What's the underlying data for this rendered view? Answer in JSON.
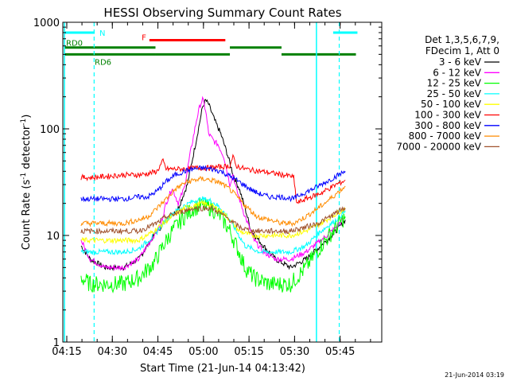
{
  "chart_data": {
    "type": "line",
    "title": "HESSI Observing Summary Count Rates",
    "xlabel": "Start Time (21-Jun-14 04:13:42)",
    "ylabel_main": "Count Rate (s",
    "ylabel_sup1": "-1",
    "ylabel_mid": " detector",
    "ylabel_sup2": "-1",
    "ylabel_end": ")",
    "x_unit": "minutes after 04:13:42",
    "xlim": [
      0,
      105
    ],
    "ylim": [
      1,
      1000
    ],
    "yscale": "log",
    "grid": false,
    "x_ticks": [
      {
        "label": "04:15",
        "x": 1.3
      },
      {
        "label": "04:30",
        "x": 16.3
      },
      {
        "label": "04:45",
        "x": 31.3
      },
      {
        "label": "05:00",
        "x": 46.3
      },
      {
        "label": "05:15",
        "x": 61.3
      },
      {
        "label": "05:30",
        "x": 76.3
      },
      {
        "label": "05:45",
        "x": 91.3
      }
    ],
    "y_ticks": [
      {
        "label": "1",
        "y": 1
      },
      {
        "label": "10",
        "y": 10
      },
      {
        "label": "100",
        "y": 100
      },
      {
        "label": "1000",
        "y": 1000
      }
    ],
    "legend_header": [
      "Det 1,3,5,6,7,9,",
      "FDecim 1, Att 0"
    ],
    "series": [
      {
        "name": "3 - 6 keV",
        "color": "#000000",
        "points": [
          [
            6,
            8
          ],
          [
            9,
            6
          ],
          [
            14,
            5
          ],
          [
            20,
            5
          ],
          [
            25,
            6
          ],
          [
            30,
            10
          ],
          [
            35,
            15
          ],
          [
            38,
            18
          ],
          [
            41,
            30
          ],
          [
            44,
            80
          ],
          [
            46,
            160
          ],
          [
            47,
            185
          ],
          [
            48,
            170
          ],
          [
            50,
            120
          ],
          [
            52,
            90
          ],
          [
            54,
            60
          ],
          [
            56,
            38
          ],
          [
            57,
            32
          ],
          [
            58,
            28
          ],
          [
            60,
            18
          ],
          [
            62,
            11
          ],
          [
            66,
            8
          ],
          [
            70,
            6
          ],
          [
            75,
            5
          ],
          [
            80,
            6
          ],
          [
            85,
            8
          ],
          [
            90,
            11
          ],
          [
            93,
            14
          ]
        ]
      },
      {
        "name": "6 - 12 keV",
        "color": "#ff00ff",
        "points": [
          [
            6,
            9
          ],
          [
            9,
            6
          ],
          [
            14,
            5
          ],
          [
            20,
            5
          ],
          [
            25,
            6
          ],
          [
            30,
            10
          ],
          [
            32,
            12
          ],
          [
            34,
            20
          ],
          [
            36,
            28
          ],
          [
            38,
            20
          ],
          [
            40,
            28
          ],
          [
            42,
            60
          ],
          [
            44,
            120
          ],
          [
            45,
            160
          ],
          [
            46,
            190
          ],
          [
            47,
            150
          ],
          [
            48,
            90
          ],
          [
            50,
            75
          ],
          [
            51,
            72
          ],
          [
            53,
            55
          ],
          [
            55,
            30
          ],
          [
            56,
            38
          ],
          [
            57,
            28
          ],
          [
            60,
            15
          ],
          [
            63,
            9
          ],
          [
            66,
            7
          ],
          [
            70,
            6
          ],
          [
            75,
            6
          ],
          [
            80,
            7
          ],
          [
            85,
            9
          ],
          [
            90,
            12
          ],
          [
            93,
            15
          ]
        ]
      },
      {
        "name": "12 - 25 keV",
        "color": "#00ff00",
        "points": [
          [
            6,
            4
          ],
          [
            9,
            3.5
          ],
          [
            14,
            3.5
          ],
          [
            20,
            3.5
          ],
          [
            25,
            4
          ],
          [
            30,
            5.5
          ],
          [
            33,
            8
          ],
          [
            36,
            11
          ],
          [
            40,
            15
          ],
          [
            43,
            18
          ],
          [
            46,
            19
          ],
          [
            49,
            18
          ],
          [
            52,
            15
          ],
          [
            55,
            11
          ],
          [
            58,
            7
          ],
          [
            60,
            5
          ],
          [
            63,
            4
          ],
          [
            68,
            3.5
          ],
          [
            75,
            3.5
          ],
          [
            80,
            5
          ],
          [
            85,
            8
          ],
          [
            90,
            12
          ],
          [
            93,
            15
          ]
        ]
      },
      {
        "name": "25 - 50 keV",
        "color": "#00ffff",
        "points": [
          [
            6,
            7
          ],
          [
            9,
            7
          ],
          [
            14,
            7
          ],
          [
            20,
            7
          ],
          [
            25,
            7.5
          ],
          [
            30,
            10
          ],
          [
            33,
            13
          ],
          [
            36,
            16
          ],
          [
            40,
            19
          ],
          [
            43,
            21
          ],
          [
            46,
            22
          ],
          [
            49,
            21
          ],
          [
            52,
            18
          ],
          [
            55,
            14
          ],
          [
            58,
            10
          ],
          [
            60,
            8
          ],
          [
            65,
            7
          ],
          [
            70,
            7
          ],
          [
            75,
            7
          ],
          [
            80,
            8
          ],
          [
            85,
            11
          ],
          [
            90,
            14
          ],
          [
            93,
            17
          ]
        ]
      },
      {
        "name": "50 - 100 keV",
        "color": "#ffff00",
        "points": [
          [
            6,
            9
          ],
          [
            9,
            9
          ],
          [
            14,
            9
          ],
          [
            20,
            9
          ],
          [
            25,
            9
          ],
          [
            30,
            11
          ],
          [
            33,
            13
          ],
          [
            36,
            15
          ],
          [
            40,
            18
          ],
          [
            43,
            19
          ],
          [
            46,
            20
          ],
          [
            49,
            19
          ],
          [
            52,
            17
          ],
          [
            55,
            14
          ],
          [
            58,
            11
          ],
          [
            62,
            10
          ],
          [
            66,
            10
          ],
          [
            70,
            10
          ],
          [
            75,
            10
          ],
          [
            80,
            11
          ],
          [
            85,
            13
          ],
          [
            90,
            16
          ],
          [
            93,
            18
          ]
        ]
      },
      {
        "name": "100 - 300 keV",
        "color": "#ff0000",
        "points": [
          [
            6,
            35
          ],
          [
            10,
            35
          ],
          [
            15,
            36
          ],
          [
            20,
            37
          ],
          [
            25,
            37
          ],
          [
            28,
            38
          ],
          [
            31,
            40
          ],
          [
            33,
            50
          ],
          [
            34,
            42
          ],
          [
            36,
            42
          ],
          [
            40,
            42
          ],
          [
            44,
            43
          ],
          [
            48,
            43
          ],
          [
            52,
            44
          ],
          [
            55,
            45
          ],
          [
            56,
            55
          ],
          [
            57,
            45
          ],
          [
            60,
            42
          ],
          [
            65,
            40
          ],
          [
            70,
            38
          ],
          [
            75,
            36
          ],
          [
            76,
            35
          ],
          [
            77,
            20
          ],
          [
            80,
            22
          ],
          [
            85,
            25
          ],
          [
            90,
            30
          ],
          [
            93,
            33
          ]
        ]
      },
      {
        "name": "300 - 800 keV",
        "color": "#0000ff",
        "points": [
          [
            6,
            22
          ],
          [
            10,
            22
          ],
          [
            15,
            22
          ],
          [
            20,
            22
          ],
          [
            25,
            23
          ],
          [
            28,
            23
          ],
          [
            31,
            26
          ],
          [
            34,
            32
          ],
          [
            37,
            37
          ],
          [
            40,
            40
          ],
          [
            43,
            42
          ],
          [
            46,
            43
          ],
          [
            49,
            42
          ],
          [
            52,
            40
          ],
          [
            55,
            36
          ],
          [
            58,
            32
          ],
          [
            61,
            28
          ],
          [
            64,
            25
          ],
          [
            68,
            23
          ],
          [
            72,
            23
          ],
          [
            76,
            22
          ],
          [
            78,
            24
          ],
          [
            82,
            27
          ],
          [
            86,
            31
          ],
          [
            90,
            36
          ],
          [
            93,
            40
          ]
        ]
      },
      {
        "name": "800 - 7000 keV",
        "color": "#ff8c00",
        "points": [
          [
            6,
            13
          ],
          [
            10,
            13
          ],
          [
            15,
            13
          ],
          [
            20,
            13
          ],
          [
            25,
            14
          ],
          [
            28,
            15
          ],
          [
            31,
            18
          ],
          [
            34,
            22
          ],
          [
            37,
            27
          ],
          [
            40,
            31
          ],
          [
            43,
            33
          ],
          [
            46,
            34
          ],
          [
            49,
            33
          ],
          [
            52,
            31
          ],
          [
            55,
            27
          ],
          [
            58,
            22
          ],
          [
            61,
            18
          ],
          [
            64,
            15
          ],
          [
            68,
            14
          ],
          [
            72,
            13
          ],
          [
            76,
            13
          ],
          [
            80,
            15
          ],
          [
            84,
            18
          ],
          [
            88,
            22
          ],
          [
            91,
            26
          ],
          [
            93,
            29
          ]
        ]
      },
      {
        "name": "7000 - 20000 keV",
        "color": "#a0522d",
        "points": [
          [
            6,
            11
          ],
          [
            10,
            11
          ],
          [
            15,
            11
          ],
          [
            20,
            11
          ],
          [
            25,
            11
          ],
          [
            28,
            12
          ],
          [
            31,
            13
          ],
          [
            34,
            15
          ],
          [
            37,
            16
          ],
          [
            40,
            17
          ],
          [
            43,
            18
          ],
          [
            46,
            18
          ],
          [
            49,
            18
          ],
          [
            52,
            16
          ],
          [
            55,
            14
          ],
          [
            58,
            12
          ],
          [
            62,
            11
          ],
          [
            66,
            11
          ],
          [
            70,
            11
          ],
          [
            75,
            11
          ],
          [
            80,
            12
          ],
          [
            84,
            13
          ],
          [
            88,
            15
          ],
          [
            91,
            17
          ],
          [
            93,
            18
          ]
        ]
      }
    ],
    "flags": [
      {
        "label": "N",
        "color": "#00ffff",
        "y": 800,
        "segments": [
          [
            0,
            10.5
          ],
          [
            89,
            97
          ]
        ]
      },
      {
        "label": "F",
        "color": "#ff0000",
        "y": 680,
        "segments": [
          [
            28.5,
            53.5
          ]
        ]
      },
      {
        "label": "RD0",
        "color": "#008000",
        "y": 580,
        "segments": [
          [
            0,
            30.5
          ],
          [
            55,
            72
          ]
        ]
      },
      {
        "label": "RD6",
        "color": "#008000",
        "y": 500,
        "segments": [
          [
            0,
            30.5
          ],
          [
            30.5,
            55
          ],
          [
            72,
            96.5
          ]
        ]
      }
    ],
    "saa_lines": [
      {
        "x": 10.3,
        "style": "dashed"
      },
      {
        "x": 91,
        "style": "dashed"
      }
    ],
    "night_lines": [
      {
        "x": 0,
        "style": "solid"
      },
      {
        "x": 83.5,
        "style": "solid"
      }
    ],
    "footer": "21-Jun-2014 03:19"
  }
}
